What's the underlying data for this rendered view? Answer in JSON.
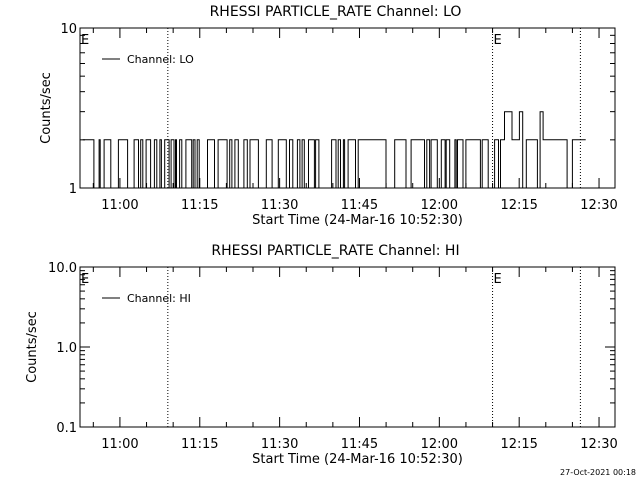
{
  "footer_stamp": "27-Oct-2021 00:18",
  "chart_data": [
    {
      "type": "line",
      "title": "RHESSI PARTICLE_RATE Channel: LO",
      "xlabel": "Start Time (24-Mar-16 10:52:30)",
      "ylabel": "Counts/sec",
      "yscale": "log",
      "ylim": [
        1,
        10
      ],
      "ytick_labels": [
        "1",
        "10"
      ],
      "xlim": [
        "10:52:30",
        "12:33:00"
      ],
      "xtick_labels": [
        "11:00",
        "11:15",
        "11:30",
        "11:45",
        "12:00",
        "12:15",
        "12:30"
      ],
      "grid": false,
      "legend": {
        "position": "top-left",
        "entries": [
          "Channel: LO"
        ]
      },
      "event_lines": [
        {
          "time": "11:09:00",
          "label": ""
        },
        {
          "time": "12:10:00",
          "label": "E"
        },
        {
          "time": "12:26:30",
          "label": ""
        }
      ],
      "start_marker": "E",
      "series": [
        {
          "name": "Channel: LO",
          "segments": [
            {
              "x_start": "10:53:00",
              "x_end": "11:41:00",
              "levels": [
                1,
                2
              ],
              "note": "rapid toggling between 1 and 2"
            },
            {
              "x_start": "11:41:00",
              "x_end": "12:11:30",
              "levels": [
                1,
                2
              ],
              "note": "rapid toggling between 1 and 2"
            },
            {
              "x_start": "12:11:30",
              "x_end": "12:19:30",
              "levels": [
                1,
                2,
                3
              ],
              "note": "toggling between 2 and 3 with floor at 1"
            },
            {
              "x_start": "12:19:30",
              "x_end": "12:24:00",
              "levels": [
                2
              ],
              "note": "steady at 2"
            },
            {
              "x_start": "12:24:00",
              "x_end": "12:25:00",
              "levels": [
                1
              ],
              "note": "dip to 1"
            },
            {
              "x_start": "12:25:00",
              "x_end": "12:27:30",
              "levels": [
                2
              ],
              "note": "steady at 2"
            }
          ]
        }
      ]
    },
    {
      "type": "line",
      "title": "RHESSI PARTICLE_RATE Channel: HI",
      "xlabel": "Start Time (24-Mar-16 10:52:30)",
      "ylabel": "Counts/sec",
      "yscale": "log",
      "ylim": [
        0.1,
        10
      ],
      "ytick_labels": [
        "0.1",
        "1.0",
        "10.0"
      ],
      "xlim": [
        "10:52:30",
        "12:33:00"
      ],
      "xtick_labels": [
        "11:00",
        "11:15",
        "11:30",
        "11:45",
        "12:00",
        "12:15",
        "12:30"
      ],
      "grid": false,
      "legend": {
        "position": "top-left",
        "entries": [
          "Channel: HI"
        ]
      },
      "event_lines": [
        {
          "time": "11:09:00",
          "label": ""
        },
        {
          "time": "12:10:00",
          "label": "E"
        },
        {
          "time": "12:26:30",
          "label": ""
        }
      ],
      "start_marker": "E",
      "series": [
        {
          "name": "Channel: HI",
          "segments": []
        }
      ]
    }
  ]
}
